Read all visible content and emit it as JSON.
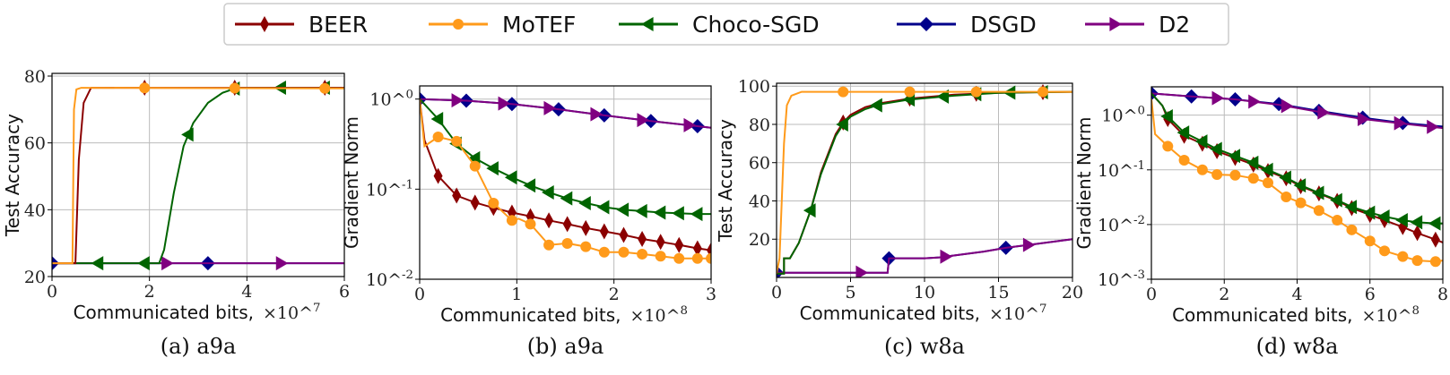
{
  "colors": {
    "BEER": "#8b0000",
    "MoTEF": "#ff9a1a",
    "Choco-SGD": "#006400",
    "DSGD": "#00008b",
    "D2": "#800080"
  },
  "markers": {
    "BEER": "thin-diamond",
    "MoTEF": "circle",
    "Choco-SGD": "triangle-left",
    "DSGD": "diamond",
    "D2": "triangle-right"
  },
  "legend": {
    "placement": "top-center",
    "entries": [
      "BEER",
      "MoTEF",
      "Choco-SGD",
      "DSGD",
      "D2"
    ]
  },
  "chart_data": [
    {
      "type": "line",
      "caption": "(a) a9a",
      "xlabel": "Communicated bits,",
      "xexp": "×10^7",
      "ylabel": "Test Accuracy",
      "yscale": "linear",
      "xlim": [
        0,
        6
      ],
      "ylim": [
        20,
        80.8
      ],
      "grid": true,
      "xticks": [
        {
          "v": 0,
          "label": "0"
        },
        {
          "v": 2,
          "label": "2"
        },
        {
          "v": 4,
          "label": "4"
        },
        {
          "v": 6,
          "label": "6"
        }
      ],
      "yticks": [
        {
          "v": 20,
          "label": "20"
        },
        {
          "v": 40,
          "label": "40"
        },
        {
          "v": 60,
          "label": "60"
        },
        {
          "v": 80,
          "label": "80"
        }
      ],
      "series": [
        {
          "name": "DSGD",
          "x": [
            0,
            6
          ],
          "y": [
            24,
            24
          ],
          "marker_x": [
            0,
            3.2
          ]
        },
        {
          "name": "D2",
          "x": [
            0,
            6
          ],
          "y": [
            24,
            24
          ],
          "marker_x": [
            2.35,
            4.7
          ]
        },
        {
          "name": "Choco-SGD",
          "x": [
            0,
            2.2,
            2.3,
            2.5,
            2.7,
            2.9,
            3.2,
            3.5,
            3.8,
            6
          ],
          "y": [
            24,
            24,
            28,
            45,
            59,
            66,
            72,
            75,
            76.5,
            76.5
          ],
          "marker_x": [
            0.95,
            1.9,
            2.8,
            3.75,
            4.7,
            5.6
          ]
        },
        {
          "name": "BEER",
          "x": [
            0,
            0.48,
            0.55,
            0.65,
            0.8,
            6
          ],
          "y": [
            24,
            24,
            55,
            72,
            76.5,
            76.5
          ],
          "marker_x": [
            1.9,
            3.75,
            5.6
          ]
        },
        {
          "name": "MoTEF",
          "x": [
            0,
            0.42,
            0.45,
            0.5,
            0.6,
            6
          ],
          "y": [
            24,
            24,
            70,
            76,
            76.5,
            76.3
          ],
          "marker_x": [
            1.9,
            3.75,
            5.6
          ]
        }
      ]
    },
    {
      "type": "line",
      "caption": "(b) a9a",
      "xlabel": "Communicated bits,",
      "xexp": "×10^8",
      "ylabel": "Gradient Norm",
      "yscale": "log",
      "xlim": [
        0,
        3
      ],
      "ylim": [
        0.01,
        1.4
      ],
      "grid": true,
      "xticks": [
        {
          "v": 0,
          "label": "0"
        },
        {
          "v": 1,
          "label": "1"
        },
        {
          "v": 2,
          "label": "2"
        },
        {
          "v": 3,
          "label": "3"
        }
      ],
      "yticks": [
        {
          "v": 0.01,
          "label": "10^-2"
        },
        {
          "v": 0.1,
          "label": "10^-1"
        },
        {
          "v": 1,
          "label": "10^0"
        }
      ],
      "series": [
        {
          "name": "DSGD",
          "x": [
            0,
            0.48,
            0.95,
            1.43,
            1.9,
            2.38,
            2.86,
            3
          ],
          "y": [
            1,
            0.96,
            0.88,
            0.77,
            0.66,
            0.57,
            0.5,
            0.48
          ],
          "marker_x": [
            0,
            0.48,
            0.95,
            1.43,
            1.9,
            2.38,
            2.86
          ]
        },
        {
          "name": "D2",
          "x": [
            0,
            0.48,
            0.95,
            1.43,
            1.9,
            2.38,
            2.86,
            3
          ],
          "y": [
            1,
            0.96,
            0.88,
            0.77,
            0.66,
            0.57,
            0.5,
            0.48
          ],
          "marker_x": [
            0.38,
            0.86,
            1.33,
            1.81,
            2.29,
            2.77
          ]
        },
        {
          "name": "Choco-SGD",
          "x": [
            0,
            0.19,
            0.38,
            0.57,
            0.76,
            0.95,
            1.14,
            1.33,
            1.52,
            1.71,
            1.9,
            2.1,
            2.29,
            2.48,
            2.67,
            2.86,
            3
          ],
          "y": [
            1,
            0.6,
            0.32,
            0.22,
            0.17,
            0.135,
            0.11,
            0.092,
            0.079,
            0.07,
            0.063,
            0.059,
            0.057,
            0.055,
            0.054,
            0.053,
            0.053
          ],
          "marker_x": [
            0.19,
            0.38,
            0.57,
            0.76,
            0.95,
            1.14,
            1.33,
            1.52,
            1.71,
            1.9,
            2.1,
            2.29,
            2.48,
            2.67,
            2.86
          ]
        },
        {
          "name": "BEER",
          "x": [
            0,
            0.05,
            0.19,
            0.38,
            0.57,
            0.76,
            0.95,
            1.14,
            1.33,
            1.52,
            1.71,
            1.9,
            2.1,
            2.29,
            2.48,
            2.67,
            2.86,
            3
          ],
          "y": [
            1,
            0.35,
            0.14,
            0.085,
            0.071,
            0.062,
            0.055,
            0.05,
            0.045,
            0.041,
            0.037,
            0.034,
            0.031,
            0.028,
            0.026,
            0.024,
            0.022,
            0.021
          ],
          "marker_x": [
            0.19,
            0.38,
            0.57,
            0.76,
            0.95,
            1.14,
            1.33,
            1.52,
            1.71,
            1.9,
            2.1,
            2.29,
            2.48,
            2.67,
            2.86,
            3
          ]
        },
        {
          "name": "MoTEF",
          "x": [
            0,
            0.05,
            0.19,
            0.38,
            0.57,
            0.76,
            0.95,
            1.02,
            1.14,
            1.33,
            1.52,
            1.71,
            1.9,
            2.1,
            2.29,
            2.48,
            2.67,
            2.86,
            3
          ],
          "y": [
            1,
            0.3,
            0.38,
            0.34,
            0.18,
            0.07,
            0.045,
            0.047,
            0.041,
            0.024,
            0.025,
            0.023,
            0.02,
            0.02,
            0.019,
            0.018,
            0.017,
            0.017,
            0.017
          ],
          "marker_x": [
            0.19,
            0.38,
            0.57,
            0.76,
            0.95,
            1.14,
            1.33,
            1.52,
            1.71,
            1.9,
            2.1,
            2.29,
            2.48,
            2.67,
            2.86,
            3
          ]
        }
      ]
    },
    {
      "type": "line",
      "caption": "(c) w8a",
      "xlabel": "Communicated bits,",
      "xexp": "×10^7",
      "ylabel": "Test Accuracy",
      "yscale": "linear",
      "xlim": [
        0,
        20
      ],
      "ylim": [
        0,
        101.5
      ],
      "grid": true,
      "xticks": [
        {
          "v": 0,
          "label": "0"
        },
        {
          "v": 5,
          "label": "5"
        },
        {
          "v": 10,
          "label": "10"
        },
        {
          "v": 15,
          "label": "15"
        },
        {
          "v": 20,
          "label": "20"
        }
      ],
      "yticks": [
        {
          "v": 20,
          "label": "20"
        },
        {
          "v": 40,
          "label": "40"
        },
        {
          "v": 60,
          "label": "60"
        },
        {
          "v": 80,
          "label": "80"
        },
        {
          "v": 100,
          "label": "100"
        }
      ],
      "series": [
        {
          "name": "DSGD",
          "x": [
            0,
            7.5,
            7.6,
            10,
            11,
            14,
            15.5,
            17,
            20
          ],
          "y": [
            2.5,
            2.5,
            10,
            10,
            10.5,
            13.5,
            15.5,
            17,
            20
          ],
          "marker_x": [
            0,
            7.6,
            15.5
          ]
        },
        {
          "name": "D2",
          "x": [
            0,
            7.5,
            7.6,
            10,
            11,
            14,
            15.5,
            17,
            20
          ],
          "y": [
            2.5,
            2.5,
            10,
            10,
            10.5,
            13.5,
            15.5,
            17,
            20
          ],
          "marker_x": [
            5.7,
            11.4,
            17
          ]
        },
        {
          "name": "BEER",
          "x": [
            0,
            0.5,
            0.5,
            0.9,
            1.5,
            2.3,
            3,
            4,
            4.5,
            5,
            6,
            7,
            9,
            12,
            15,
            20
          ],
          "y": [
            2,
            2,
            10,
            10,
            18,
            35,
            55,
            75,
            81,
            85,
            89,
            91,
            93.5,
            95.5,
            96.5,
            97
          ],
          "marker_x": [
            4.5,
            9,
            13.5,
            18
          ]
        },
        {
          "name": "Choco-SGD",
          "x": [
            0,
            0.5,
            0.5,
            0.9,
            1.5,
            2.3,
            3,
            4,
            4.5,
            5,
            6,
            7,
            9,
            12,
            15,
            20
          ],
          "y": [
            2,
            2,
            10,
            10,
            18,
            35,
            54,
            74,
            80,
            84,
            88,
            90.5,
            93,
            95,
            96.5,
            97
          ],
          "marker_x": [
            2.3,
            4.5,
            6.8,
            9,
            11.3,
            13.5,
            15.8,
            18
          ]
        },
        {
          "name": "MoTEF",
          "x": [
            0,
            0.2,
            0.5,
            0.7,
            1,
            1.7,
            20
          ],
          "y": [
            2,
            10,
            70,
            90,
            95,
            97,
            97
          ],
          "marker_x": [
            4.5,
            9,
            13.5,
            18
          ]
        }
      ]
    },
    {
      "type": "line",
      "caption": "(d) w8a",
      "xlabel": "Communicated bits,",
      "xexp": "×10^8",
      "ylabel": "Gradient Norm",
      "yscale": "log",
      "xlim": [
        0,
        8
      ],
      "ylim": [
        0.001,
        3.3
      ],
      "grid": true,
      "xticks": [
        {
          "v": 0,
          "label": "0"
        },
        {
          "v": 2,
          "label": "2"
        },
        {
          "v": 4,
          "label": "4"
        },
        {
          "v": 6,
          "label": "6"
        },
        {
          "v": 8,
          "label": "8"
        }
      ],
      "yticks": [
        {
          "v": 0.001,
          "label": "10^-3"
        },
        {
          "v": 0.01,
          "label": "10^-2"
        },
        {
          "v": 0.1,
          "label": "10^-1"
        },
        {
          "v": 1,
          "label": "10^0"
        }
      ],
      "series": [
        {
          "name": "DSGD",
          "x": [
            0,
            1.1,
            2.3,
            3.5,
            4.6,
            5.8,
            6.9,
            8
          ],
          "y": [
            2.5,
            2.2,
            1.95,
            1.6,
            1.2,
            0.9,
            0.72,
            0.62
          ],
          "marker_x": [
            0,
            1.1,
            2.3,
            3.5,
            4.6,
            5.8,
            6.9
          ]
        },
        {
          "name": "D2",
          "x": [
            0,
            1.1,
            2.3,
            3.5,
            4.6,
            5.8,
            6.9,
            8
          ],
          "y": [
            2.5,
            2.2,
            1.95,
            1.55,
            1.15,
            0.85,
            0.7,
            0.58
          ],
          "marker_x": [
            1.8,
            2.8,
            3.7,
            4.7,
            5.8,
            6.8,
            7.7
          ]
        },
        {
          "name": "BEER",
          "x": [
            0,
            0.3,
            0.45,
            0.9,
            1.4,
            1.8,
            2.3,
            2.8,
            3.2,
            3.7,
            4.1,
            4.6,
            5.1,
            5.5,
            6,
            6.4,
            6.9,
            7.3,
            7.8,
            8
          ],
          "y": [
            2.5,
            1.5,
            0.85,
            0.42,
            0.3,
            0.22,
            0.165,
            0.125,
            0.095,
            0.07,
            0.05,
            0.037,
            0.027,
            0.02,
            0.015,
            0.012,
            0.009,
            0.007,
            0.0053,
            0.0047
          ],
          "marker_x": [
            0.45,
            0.9,
            1.4,
            1.8,
            2.3,
            2.8,
            3.2,
            3.7,
            4.1,
            4.6,
            5.1,
            5.5,
            6,
            6.4,
            6.9,
            7.3,
            7.8
          ]
        },
        {
          "name": "Choco-SGD",
          "x": [
            0,
            0.3,
            0.45,
            0.9,
            1.4,
            1.8,
            2.3,
            2.8,
            3.2,
            3.7,
            4.1,
            4.6,
            5.1,
            5.5,
            6,
            6.4,
            6.9,
            7.3,
            7.8,
            8
          ],
          "y": [
            2.5,
            1.5,
            0.95,
            0.48,
            0.33,
            0.24,
            0.18,
            0.135,
            0.1,
            0.072,
            0.052,
            0.038,
            0.028,
            0.021,
            0.0165,
            0.014,
            0.012,
            0.011,
            0.0105,
            0.0105
          ],
          "marker_x": [
            0.45,
            0.9,
            1.4,
            1.8,
            2.3,
            2.8,
            3.2,
            3.7,
            4.1,
            4.6,
            5.1,
            5.5,
            6,
            6.4,
            6.9,
            7.3,
            7.8
          ]
        },
        {
          "name": "MoTEF",
          "x": [
            0,
            0.1,
            0.45,
            0.9,
            1.4,
            1.8,
            2.3,
            2.8,
            3.2,
            3.7,
            4.1,
            4.6,
            5.1,
            5.5,
            6,
            6.4,
            6.9,
            7.3,
            7.8,
            8
          ],
          "y": [
            2,
            0.45,
            0.27,
            0.15,
            0.1,
            0.082,
            0.08,
            0.07,
            0.058,
            0.032,
            0.025,
            0.018,
            0.012,
            0.008,
            0.005,
            0.0033,
            0.0026,
            0.0022,
            0.0021,
            0.0022
          ],
          "marker_x": [
            0.45,
            0.9,
            1.4,
            1.8,
            2.3,
            2.8,
            3.2,
            3.7,
            4.1,
            4.6,
            5.1,
            5.5,
            6,
            6.4,
            6.9,
            7.3,
            7.8
          ]
        }
      ]
    }
  ]
}
